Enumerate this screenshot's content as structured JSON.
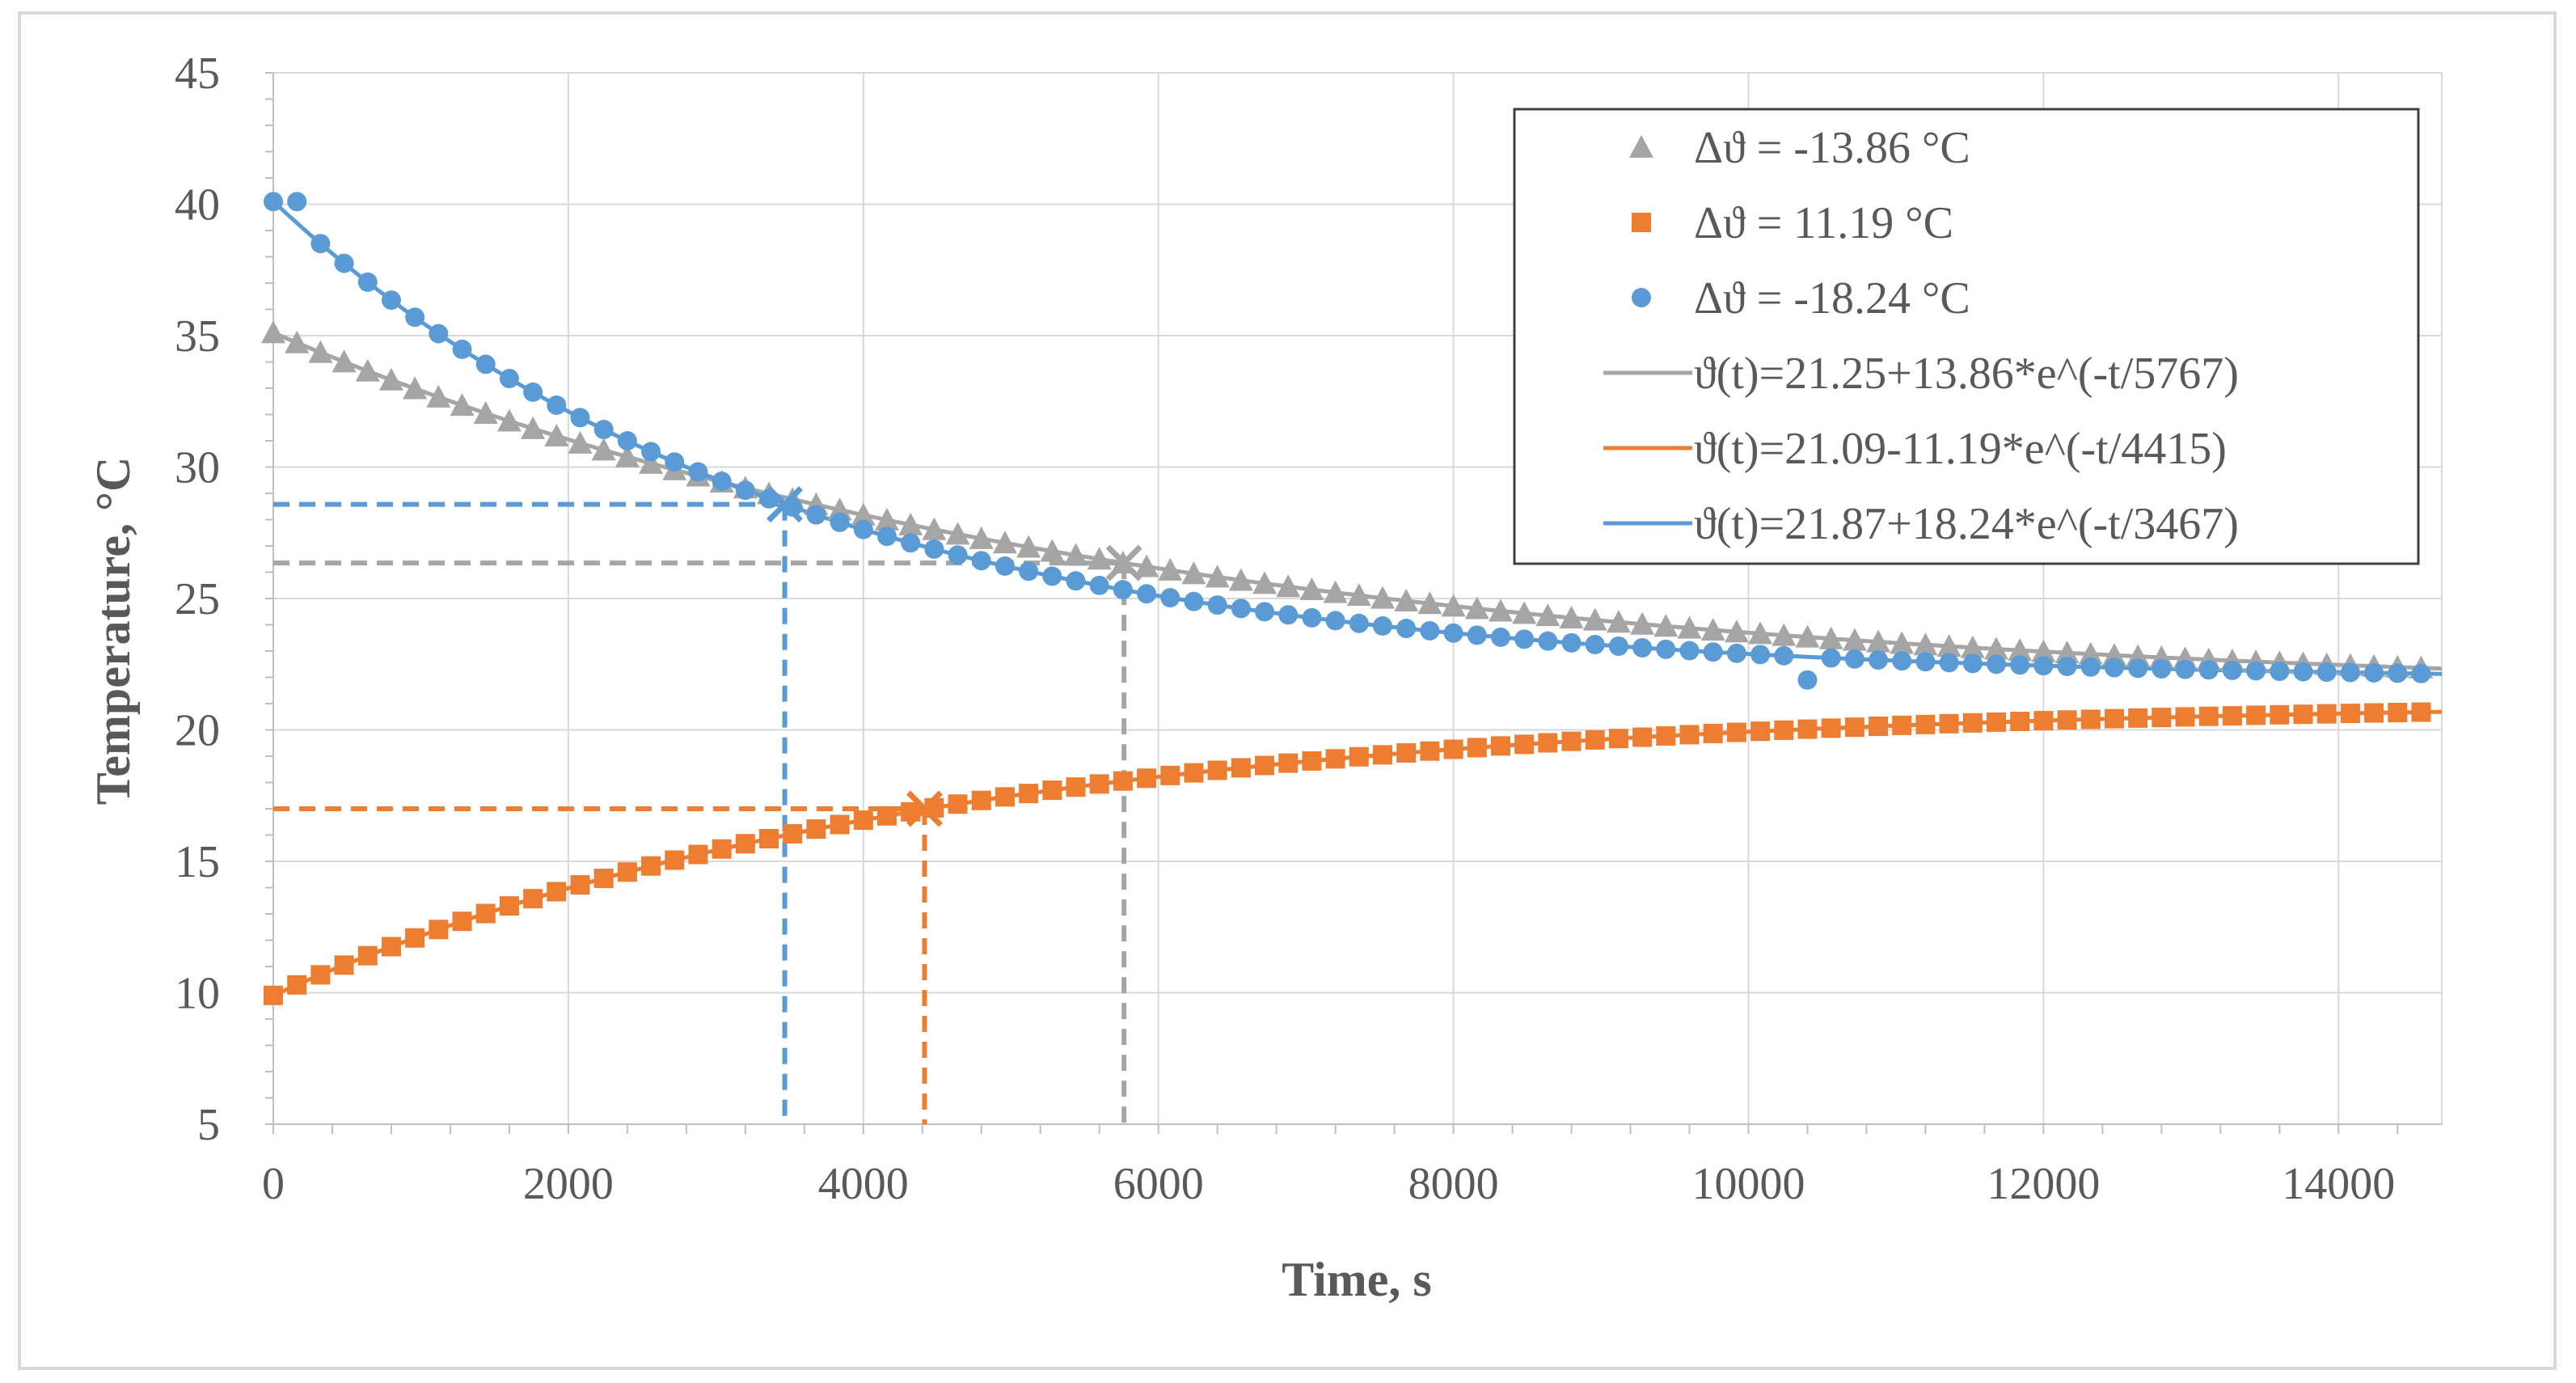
{
  "chart_data": {
    "type": "scatter",
    "xlabel": "Time, s",
    "ylabel": "Temperature, °C",
    "xlim": [
      0,
      14700
    ],
    "ylim": [
      5,
      45
    ],
    "x_ticks": [
      0,
      2000,
      4000,
      6000,
      8000,
      10000,
      12000,
      14000
    ],
    "y_ticks": [
      5,
      10,
      15,
      20,
      25,
      30,
      35,
      40,
      45
    ],
    "grid": true,
    "legend_position": "top-right",
    "series": [
      {
        "name": "Δϑ = -13.86 °C",
        "kind": "marker",
        "marker": "triangle",
        "color": "#a5a5a5",
        "T_inf": 21.25,
        "A": 13.86,
        "tau": 5767,
        "dt": 160,
        "t_end": 14700
      },
      {
        "name": "Δϑ = 11.19 °C",
        "kind": "marker",
        "marker": "square",
        "color": "#ed7d31",
        "T_inf": 21.09,
        "A": -11.19,
        "tau": 4415,
        "dt": 160,
        "t_end": 14700
      },
      {
        "name": "Δϑ = -18.24 °C",
        "kind": "marker",
        "marker": "circle",
        "color": "#5b9bd5",
        "T_inf": 21.87,
        "A": 18.24,
        "tau": 3467,
        "dt": 160,
        "t_end": 14700,
        "start_plateau": 40.1,
        "outlier": {
          "t": 10400,
          "y": 21.9
        }
      },
      {
        "name": "ϑ(t)=21.25+13.86*e^(-t/5767)",
        "kind": "fit",
        "color": "#a5a5a5",
        "T_inf": 21.25,
        "A": 13.86,
        "tau": 5767
      },
      {
        "name": "ϑ(t)=21.09-11.19*e^(-t/4415)",
        "kind": "fit",
        "color": "#ed7d31",
        "T_inf": 21.09,
        "A": -11.19,
        "tau": 4415
      },
      {
        "name": "ϑ(t)=21.87+18.24*e^(-t/3467)",
        "kind": "fit",
        "color": "#5b9bd5",
        "T_inf": 21.87,
        "A": 18.24,
        "tau": 3467
      }
    ],
    "time_constant_markers": [
      {
        "name": "tau-gray",
        "t": 5767,
        "y": 26.35,
        "color": "#a5a5a5"
      },
      {
        "name": "tau-orange",
        "t": 4415,
        "y": 17.0,
        "color": "#ed7d31"
      },
      {
        "name": "tau-blue",
        "t": 3467,
        "y": 28.58,
        "color": "#5b9bd5"
      }
    ]
  }
}
